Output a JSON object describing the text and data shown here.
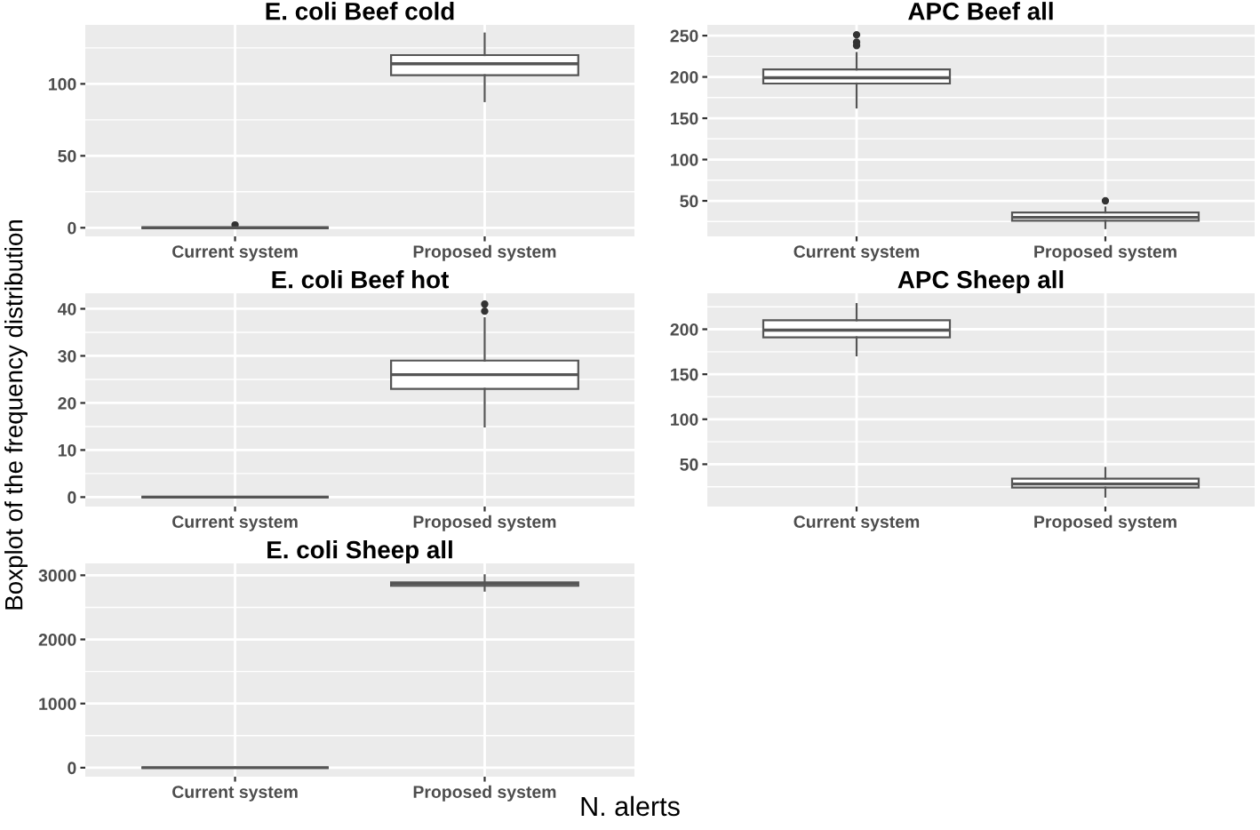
{
  "chart_data": [
    {
      "type": "box",
      "title": "E. coli Beef cold",
      "ylabel": "Boxplot of the frequency distribution",
      "xlabel": "N. alerts",
      "categories": [
        "Current system",
        "Proposed system"
      ],
      "ylim": [
        -6,
        141
      ],
      "yticks": [
        0,
        50,
        100
      ],
      "grid": true,
      "boxes": [
        {
          "low": 0,
          "q1": 0,
          "median": 0,
          "q3": 0,
          "high": 0,
          "outliers": [
            2
          ]
        },
        {
          "low": 88,
          "q1": 106,
          "median": 114,
          "q3": 120,
          "high": 135
        }
      ]
    },
    {
      "type": "box",
      "title": "APC Beef all",
      "categories": [
        "Current system",
        "Proposed system"
      ],
      "ylim": [
        7,
        263
      ],
      "yticks": [
        50,
        100,
        150,
        200,
        250
      ],
      "grid": true,
      "boxes": [
        {
          "low": 163,
          "q1": 192,
          "median": 199,
          "q3": 209,
          "high": 229,
          "outliers": [
            238,
            242,
            251
          ]
        },
        {
          "low": 17,
          "q1": 26,
          "median": 30,
          "q3": 36,
          "high": 42,
          "outliers": [
            50
          ]
        }
      ]
    },
    {
      "type": "box",
      "title": "E. coli Beef hot",
      "categories": [
        "Current system",
        "Proposed system"
      ],
      "ylim": [
        -2,
        43.3
      ],
      "yticks": [
        0,
        10,
        20,
        30,
        40
      ],
      "grid": true,
      "boxes": [
        {
          "low": 0,
          "q1": 0,
          "median": 0,
          "q3": 0,
          "high": 0
        },
        {
          "low": 15,
          "q1": 23,
          "median": 26,
          "q3": 29,
          "high": 38,
          "outliers": [
            39.5,
            41
          ]
        }
      ]
    },
    {
      "type": "box",
      "title": "APC Sheep all",
      "categories": [
        "Current system",
        "Proposed system"
      ],
      "ylim": [
        3,
        240
      ],
      "yticks": [
        50,
        100,
        150,
        200
      ],
      "grid": true,
      "boxes": [
        {
          "low": 171,
          "q1": 191,
          "median": 199,
          "q3": 210,
          "high": 228
        },
        {
          "low": 14,
          "q1": 24,
          "median": 28,
          "q3": 34,
          "high": 46
        }
      ]
    },
    {
      "type": "box",
      "title": "E. coli Sheep all",
      "categories": [
        "Current system",
        "Proposed system"
      ],
      "ylim": [
        -140,
        3185
      ],
      "yticks": [
        0,
        1000,
        2000,
        3000
      ],
      "grid": true,
      "boxes": [
        {
          "low": 0,
          "q1": 0,
          "median": 0,
          "q3": 0,
          "high": 0
        },
        {
          "low": 2760,
          "q1": 2835,
          "median": 2870,
          "q3": 2890,
          "high": 3000
        }
      ]
    }
  ]
}
